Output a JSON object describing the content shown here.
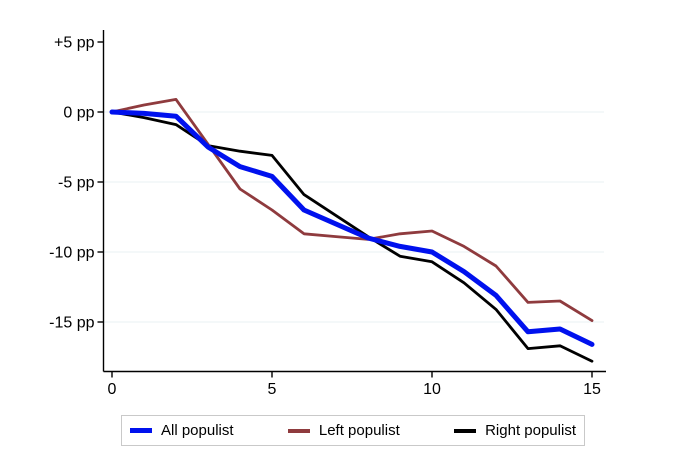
{
  "figure": {
    "background": "#ffffff",
    "axis_color": "#000000",
    "grid_color": "#e9f1f3",
    "legend_border_color": "#c9c9c9",
    "legend_background": "#ffffff"
  },
  "chart_data": {
    "type": "line",
    "title": "",
    "xlabel": "",
    "ylabel": "",
    "unit": "pp",
    "x": [
      0,
      1,
      2,
      3,
      4,
      5,
      6,
      7,
      8,
      9,
      10,
      11,
      12,
      13,
      14,
      15
    ],
    "series": [
      {
        "name": "All populist",
        "color": "#0011ee",
        "stroke_width": 5,
        "values": [
          0,
          -0.1,
          -0.3,
          -2.5,
          -3.9,
          -4.6,
          -7.0,
          -8.0,
          -9.0,
          -9.6,
          -10.0,
          -11.4,
          -13.1,
          -15.7,
          -15.5,
          -16.6
        ]
      },
      {
        "name": "Left populist",
        "color": "#8f3b3e",
        "stroke_width": 2.8,
        "values": [
          0,
          0.5,
          0.9,
          -2.3,
          -5.5,
          -7.0,
          -8.7,
          -8.9,
          -9.1,
          -8.7,
          -8.5,
          -9.6,
          -11.0,
          -13.6,
          -13.5,
          -14.9
        ]
      },
      {
        "name": "Right populist",
        "color": "#000000",
        "stroke_width": 2.8,
        "values": [
          0,
          -0.4,
          -0.9,
          -2.4,
          -2.8,
          -3.1,
          -5.9,
          -7.4,
          -8.9,
          -10.3,
          -10.7,
          -12.2,
          -14.1,
          -16.9,
          -16.7,
          -17.8
        ]
      }
    ],
    "x_ticks": {
      "values": [
        0,
        5,
        10,
        15
      ],
      "labels": [
        "0",
        "5",
        "10",
        "15"
      ]
    },
    "y_ticks": {
      "values": [
        5,
        0,
        -5,
        -10,
        -15
      ],
      "labels": [
        "+5 pp",
        "0 pp",
        "-5 pp",
        "-10 pp",
        "-15 pp"
      ]
    },
    "gridline_values": [
      0,
      -5,
      -10,
      -15
    ],
    "xlim": [
      0,
      15.45
    ],
    "ylim": [
      -18.5,
      5.8
    ],
    "grid": true,
    "legend_position": "bottom"
  }
}
